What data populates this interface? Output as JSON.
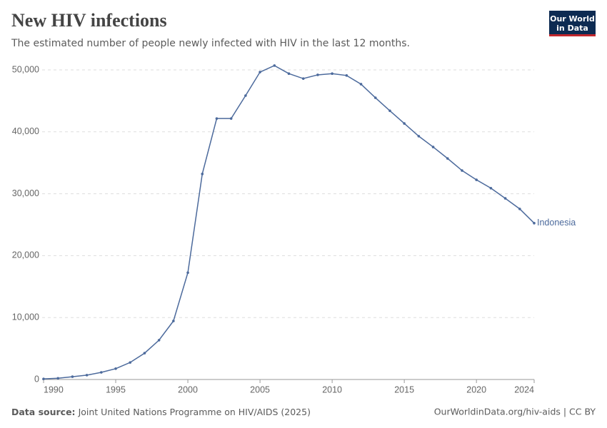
{
  "chart_data": {
    "type": "line",
    "title": "New HIV infections",
    "subtitle": "The estimated number of people newly infected with HIV in the last 12 months.",
    "source_label": "Data source:",
    "source": "Joint United Nations Programme on HIV/AIDS (2025)",
    "footer_right": "OurWorldinData.org/hiv-aids | CC BY",
    "logo": [
      "Our World",
      "in Data"
    ],
    "x": [
      1990,
      1991,
      1992,
      1993,
      1994,
      1995,
      1996,
      1997,
      1998,
      1999,
      2000,
      2001,
      2002,
      2003,
      2004,
      2005,
      2006,
      2007,
      2008,
      2009,
      2010,
      2011,
      2012,
      2013,
      2014,
      2015,
      2016,
      2017,
      2018,
      2019,
      2020,
      2021,
      2022,
      2023,
      2024
    ],
    "series": [
      {
        "name": "Indonesia",
        "color": "#4c6a9c",
        "values": [
          100,
          200,
          450,
          700,
          1150,
          1750,
          2750,
          4250,
          6350,
          9450,
          17250,
          33200,
          42150,
          42150,
          45850,
          49650,
          50700,
          49400,
          48600,
          49200,
          49400,
          49100,
          47700,
          45500,
          43400,
          41350,
          39300,
          37550,
          35700,
          33750,
          32250,
          30900,
          29250,
          27550,
          25250
        ]
      }
    ],
    "xlim": [
      1990,
      2024
    ],
    "xticks": [
      1990,
      1995,
      2000,
      2005,
      2010,
      2015,
      2020,
      2024
    ],
    "ylim": [
      0,
      50000
    ],
    "yticks": [
      0,
      {
        "value": 10000,
        "label": "10,000"
      },
      {
        "value": 20000,
        "label": "20,000"
      },
      {
        "value": 30000,
        "label": "30,000"
      },
      {
        "value": 40000,
        "label": "40,000"
      },
      {
        "value": 50000,
        "label": "50,000"
      }
    ],
    "grid": true
  }
}
